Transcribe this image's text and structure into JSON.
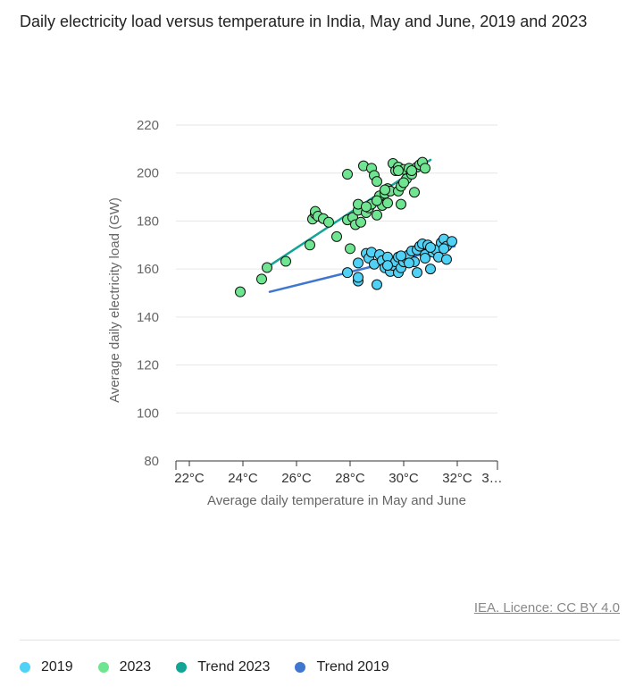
{
  "title": "Daily electricity load versus temperature in India, May and June, 2019 and 2023",
  "credit": "IEA. Licence: CC BY 4.0",
  "legend": [
    {
      "label": "2019",
      "color": "#4fd2f5"
    },
    {
      "label": "2023",
      "color": "#6fe592"
    },
    {
      "label": "Trend 2023",
      "color": "#12a596"
    },
    {
      "label": "Trend 2019",
      "color": "#3e76d0"
    }
  ],
  "chart_data": {
    "type": "scatter",
    "xlabel": "Average daily temperature in May and June",
    "ylabel": "Average daily electricity load (GW)",
    "xlim": [
      21.5,
      33.5
    ],
    "ylim": [
      80,
      220
    ],
    "x_ticks": [
      "22°C",
      "24°C",
      "26°C",
      "28°C",
      "30°C",
      "32°C",
      "3…"
    ],
    "x_tick_values": [
      22,
      24,
      26,
      28,
      30,
      32,
      33.3
    ],
    "y_ticks": [
      80,
      100,
      120,
      140,
      160,
      180,
      200,
      220
    ],
    "grid": true,
    "series": [
      {
        "name": "2023",
        "color": "#6fe592",
        "points": [
          [
            23.9,
            150.5
          ],
          [
            24.7,
            155.8
          ],
          [
            24.9,
            160.6
          ],
          [
            25.6,
            163.2
          ],
          [
            26.5,
            170.0
          ],
          [
            26.6,
            180.8
          ],
          [
            26.7,
            183.0
          ],
          [
            26.7,
            184.0
          ],
          [
            26.8,
            182.0
          ],
          [
            27.0,
            181.0
          ],
          [
            27.2,
            179.5
          ],
          [
            27.5,
            173.5
          ],
          [
            27.9,
            199.5
          ],
          [
            27.9,
            180.5
          ],
          [
            28.0,
            168.5
          ],
          [
            28.1,
            181.5
          ],
          [
            28.2,
            178.5
          ],
          [
            28.3,
            184.5
          ],
          [
            28.3,
            187.0
          ],
          [
            28.4,
            179.5
          ],
          [
            28.5,
            203.0
          ],
          [
            28.6,
            183.5
          ],
          [
            28.7,
            185.5
          ],
          [
            28.8,
            202.0
          ],
          [
            28.8,
            187.0
          ],
          [
            28.9,
            199.0
          ],
          [
            29.0,
            196.5
          ],
          [
            29.0,
            182.5
          ],
          [
            29.1,
            190.5
          ],
          [
            29.2,
            186.5
          ],
          [
            29.3,
            191.5
          ],
          [
            29.4,
            193.5
          ],
          [
            29.4,
            187.5
          ],
          [
            29.5,
            192.5
          ],
          [
            29.6,
            204.0
          ],
          [
            29.7,
            201.0
          ],
          [
            29.8,
            202.5
          ],
          [
            29.8,
            192.5
          ],
          [
            29.9,
            194.5
          ],
          [
            29.9,
            187.0
          ],
          [
            30.0,
            201.5
          ],
          [
            30.1,
            197.5
          ],
          [
            30.2,
            202.0
          ],
          [
            30.3,
            199.5
          ],
          [
            30.4,
            192.0
          ],
          [
            30.5,
            202.5
          ],
          [
            30.6,
            203.5
          ],
          [
            30.7,
            204.5
          ],
          [
            30.8,
            202.0
          ],
          [
            29.8,
            201.0
          ],
          [
            30.3,
            201.0
          ],
          [
            29.3,
            193.0
          ],
          [
            29.0,
            188.5
          ],
          [
            28.6,
            186.0
          ],
          [
            30.0,
            196.0
          ]
        ]
      },
      {
        "name": "2019",
        "color": "#4fd2f5",
        "points": [
          [
            27.9,
            158.5
          ],
          [
            28.3,
            155.0
          ],
          [
            28.3,
            156.5
          ],
          [
            28.3,
            162.5
          ],
          [
            28.6,
            166.5
          ],
          [
            28.7,
            164.5
          ],
          [
            28.8,
            167.0
          ],
          [
            28.9,
            162.0
          ],
          [
            29.0,
            153.5
          ],
          [
            29.1,
            166.0
          ],
          [
            29.2,
            163.5
          ],
          [
            29.3,
            160.5
          ],
          [
            29.4,
            165.0
          ],
          [
            29.5,
            159.0
          ],
          [
            29.6,
            161.5
          ],
          [
            29.7,
            163.0
          ],
          [
            29.8,
            158.5
          ],
          [
            29.8,
            165.0
          ],
          [
            29.9,
            160.5
          ],
          [
            30.0,
            163.0
          ],
          [
            30.1,
            164.5
          ],
          [
            30.2,
            166.0
          ],
          [
            30.3,
            167.5
          ],
          [
            30.4,
            163.0
          ],
          [
            30.5,
            158.5
          ],
          [
            30.5,
            168.0
          ],
          [
            30.6,
            169.5
          ],
          [
            30.7,
            170.5
          ],
          [
            30.8,
            166.0
          ],
          [
            30.8,
            164.5
          ],
          [
            30.9,
            170.0
          ],
          [
            31.0,
            160.0
          ],
          [
            31.1,
            167.0
          ],
          [
            31.2,
            168.0
          ],
          [
            31.3,
            165.0
          ],
          [
            31.4,
            171.0
          ],
          [
            31.5,
            172.5
          ],
          [
            31.6,
            169.5
          ],
          [
            31.6,
            164.0
          ],
          [
            31.8,
            171.5
          ],
          [
            31.5,
            168.5
          ],
          [
            31.0,
            169.0
          ],
          [
            30.2,
            162.5
          ],
          [
            29.4,
            161.5
          ],
          [
            29.9,
            165.5
          ]
        ]
      }
    ],
    "trends": [
      {
        "name": "Trend 2023",
        "color": "#12a596",
        "from": [
          24.8,
          160.0
        ],
        "to": [
          31.0,
          205.5
        ]
      },
      {
        "name": "Trend 2019",
        "color": "#3e76d0",
        "from": [
          25.0,
          150.5
        ],
        "to": [
          31.9,
          169.5
        ]
      }
    ]
  }
}
